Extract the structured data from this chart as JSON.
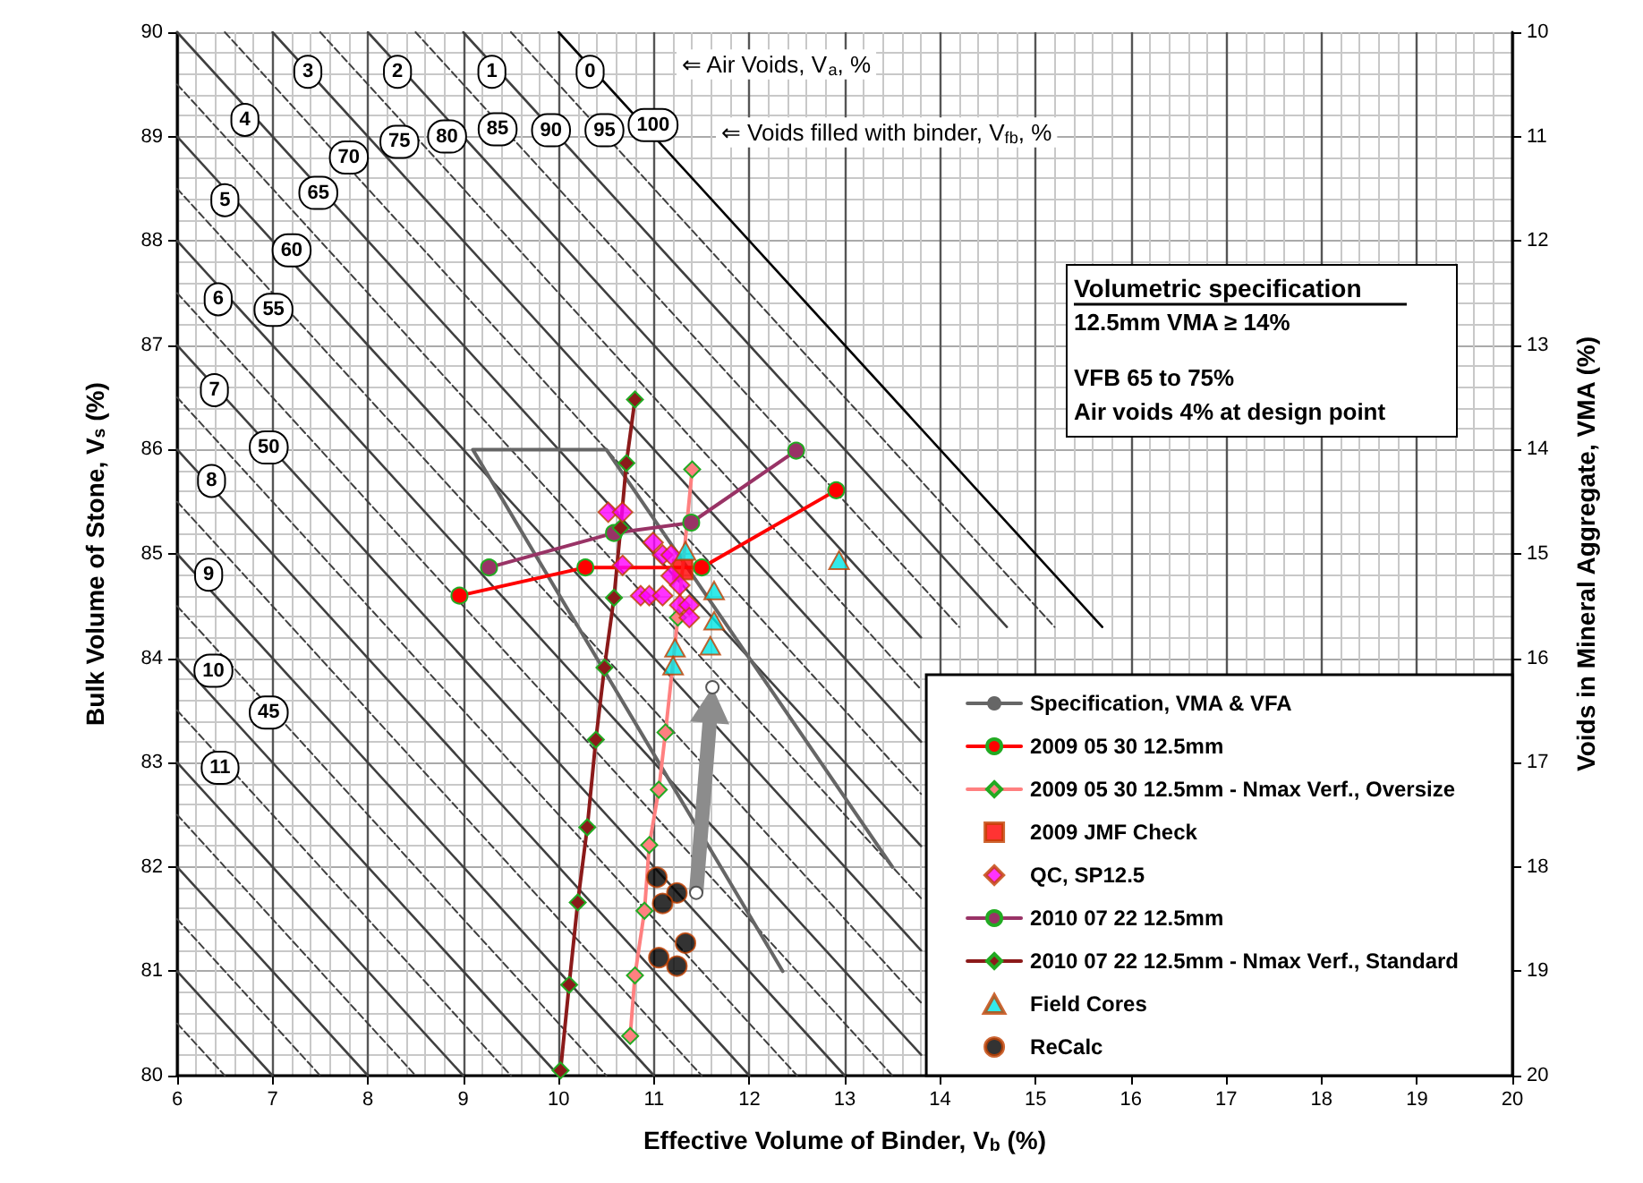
{
  "chart_data": {
    "type": "line",
    "xlabel": "Effective Volume of Binder, V$_{b}$ (%)",
    "ylabel": "Bulk Volume of Stone, V$_{s}$ (%)",
    "y2label": "Voids in Mineral Aggregate, VMA (%)",
    "xlim": [
      6,
      20
    ],
    "xticks": [
      6,
      7,
      8,
      9,
      10,
      11,
      12,
      13,
      14,
      15,
      16,
      17,
      18,
      19,
      20
    ],
    "ylim": [
      80,
      90
    ],
    "yticks": [
      80,
      81,
      82,
      83,
      84,
      85,
      86,
      87,
      88,
      89,
      90
    ],
    "y2lim": [
      20,
      10
    ],
    "y2ticks": [
      10,
      11,
      12,
      13,
      14,
      15,
      16,
      17,
      18,
      19,
      20
    ],
    "grid": true,
    "legend": "bottom right",
    "annotations": [
      "⇐ Air Voids, V$_{a}$, %",
      "⇐ Voids filled with binder, V$_{fb}$, %",
      "Volumetric specification",
      "12.5mm VMA ≥ 14%",
      "VFB 65 to 75%",
      "Air voids 4% at design point",
      {
        "text": "0",
        "x": 10.33,
        "y": 89.62
      },
      {
        "text": "1",
        "x": 9.3,
        "y": 89.62
      },
      {
        "text": "2",
        "x": 8.31,
        "y": 89.62
      },
      {
        "text": "3",
        "x": 7.37,
        "y": 89.62
      },
      {
        "text": "4",
        "x": 6.71,
        "y": 89.16
      },
      {
        "text": "5",
        "x": 6.5,
        "y": 88.39
      },
      {
        "text": "6",
        "x": 6.43,
        "y": 87.44
      },
      {
        "text": "7",
        "x": 6.39,
        "y": 86.57
      },
      {
        "text": "8",
        "x": 6.36,
        "y": 85.7
      },
      {
        "text": "9",
        "x": 6.33,
        "y": 84.8
      },
      {
        "text": "10",
        "x": 6.38,
        "y": 83.88
      },
      {
        "text": "11",
        "x": 6.45,
        "y": 82.95
      },
      {
        "text": "100",
        "x": 10.99,
        "y": 89.11
      },
      {
        "text": "95",
        "x": 10.48,
        "y": 89.06
      },
      {
        "text": "90",
        "x": 9.92,
        "y": 89.06
      },
      {
        "text": "85",
        "x": 9.36,
        "y": 89.07
      },
      {
        "text": "80",
        "x": 8.83,
        "y": 89.0
      },
      {
        "text": "75",
        "x": 8.33,
        "y": 88.95
      },
      {
        "text": "70",
        "x": 7.8,
        "y": 88.8
      },
      {
        "text": "65",
        "x": 7.48,
        "y": 88.46
      },
      {
        "text": "60",
        "x": 7.2,
        "y": 87.91
      },
      {
        "text": "55",
        "x": 7.01,
        "y": 87.34
      },
      {
        "text": "50",
        "x": 6.96,
        "y": 86.02
      },
      {
        "text": "45",
        "x": 6.96,
        "y": 83.48
      }
    ],
    "series": [
      {
        "type": "line",
        "x": [
          10,
          15.7
        ],
        "values": [
          90,
          84.3
        ],
        "color": "#000000",
        "line_style": "solid",
        "marker": "none"
      },
      {
        "type": "line",
        "x": [
          9.5,
          15.2
        ],
        "values": [
          90,
          84.3
        ],
        "color": "#404040",
        "line_style": "dashed",
        "marker": "none"
      },
      {
        "type": "line",
        "x": [
          9,
          14.7
        ],
        "values": [
          90,
          84.3
        ],
        "color": "#404040",
        "line_style": "solid",
        "marker": "none"
      },
      {
        "type": "line",
        "x": [
          8.5,
          14.2
        ],
        "values": [
          90,
          84.3
        ],
        "color": "#404040",
        "line_style": "dashed",
        "marker": "none"
      },
      {
        "type": "line",
        "x": [
          8,
          13.8
        ],
        "values": [
          90,
          84.2
        ],
        "color": "#404040",
        "line_style": "solid",
        "marker": "none"
      },
      {
        "type": "line",
        "x": [
          7.5,
          13.8
        ],
        "values": [
          90,
          83.7
        ],
        "color": "#404040",
        "line_style": "dashed",
        "marker": "none"
      },
      {
        "type": "line",
        "x": [
          7,
          13.8
        ],
        "values": [
          90,
          83.2
        ],
        "color": "#404040",
        "line_style": "solid",
        "marker": "none"
      },
      {
        "type": "line",
        "x": [
          6.5,
          13.8
        ],
        "values": [
          90,
          82.7
        ],
        "color": "#404040",
        "line_style": "dashed",
        "marker": "none"
      },
      {
        "type": "line",
        "x": [
          6,
          13.8
        ],
        "values": [
          90,
          82.2
        ],
        "color": "#404040",
        "line_style": "solid",
        "marker": "none"
      },
      {
        "type": "line",
        "x": [
          6,
          13.8
        ],
        "values": [
          89.5,
          81.7
        ],
        "color": "#404040",
        "line_style": "dashed",
        "marker": "none"
      },
      {
        "type": "line",
        "x": [
          6,
          13.8
        ],
        "values": [
          89,
          81.2
        ],
        "color": "#404040",
        "line_style": "solid",
        "marker": "none"
      },
      {
        "type": "line",
        "x": [
          6,
          13.8
        ],
        "values": [
          88.5,
          80.7
        ],
        "color": "#404040",
        "line_style": "dashed",
        "marker": "none"
      },
      {
        "type": "line",
        "x": [
          6,
          13.8
        ],
        "values": [
          88,
          80.2
        ],
        "color": "#404040",
        "line_style": "solid",
        "marker": "none"
      },
      {
        "type": "line",
        "x": [
          6,
          13.5
        ],
        "values": [
          87.5,
          80
        ],
        "color": "#404040",
        "line_style": "dashed",
        "marker": "none"
      },
      {
        "type": "line",
        "x": [
          6,
          13
        ],
        "values": [
          87,
          80
        ],
        "color": "#404040",
        "line_style": "solid",
        "marker": "none"
      },
      {
        "type": "line",
        "x": [
          6,
          12.5
        ],
        "values": [
          86.5,
          80
        ],
        "color": "#404040",
        "line_style": "dashed",
        "marker": "none"
      },
      {
        "type": "line",
        "x": [
          6,
          12
        ],
        "values": [
          86,
          80
        ],
        "color": "#404040",
        "line_style": "solid",
        "marker": "none"
      },
      {
        "type": "line",
        "x": [
          6,
          11.5
        ],
        "values": [
          85.5,
          80
        ],
        "color": "#404040",
        "line_style": "dashed",
        "marker": "none"
      },
      {
        "type": "line",
        "x": [
          6,
          11
        ],
        "values": [
          85,
          80
        ],
        "color": "#404040",
        "line_style": "solid",
        "marker": "none"
      },
      {
        "type": "line",
        "x": [
          6,
          10.5
        ],
        "values": [
          84.5,
          80
        ],
        "color": "#404040",
        "line_style": "dashed",
        "marker": "none"
      },
      {
        "type": "line",
        "x": [
          6,
          10
        ],
        "values": [
          84,
          80
        ],
        "color": "#404040",
        "line_style": "solid",
        "marker": "none"
      },
      {
        "type": "line",
        "x": [
          6,
          9.5
        ],
        "values": [
          83.5,
          80
        ],
        "color": "#404040",
        "line_style": "dashed",
        "marker": "none"
      },
      {
        "type": "line",
        "x": [
          6,
          9
        ],
        "values": [
          83,
          80
        ],
        "color": "#404040",
        "line_style": "solid",
        "marker": "none"
      },
      {
        "type": "line",
        "x": [
          6,
          8.5
        ],
        "values": [
          82.5,
          80
        ],
        "color": "#404040",
        "line_style": "dashed",
        "marker": "none"
      },
      {
        "type": "line",
        "x": [
          6,
          8
        ],
        "values": [
          82,
          80
        ],
        "color": "#404040",
        "line_style": "solid",
        "marker": "none"
      },
      {
        "type": "line",
        "x": [
          6,
          7.5
        ],
        "values": [
          81.5,
          80
        ],
        "color": "#404040",
        "line_style": "dashed",
        "marker": "none"
      },
      {
        "type": "line",
        "x": [
          6,
          7
        ],
        "values": [
          81,
          80
        ],
        "color": "#404040",
        "line_style": "solid",
        "marker": "none"
      },
      {
        "type": "line",
        "x": [
          6,
          6.5
        ],
        "values": [
          80.5,
          80
        ],
        "color": "#404040",
        "line_style": "dashed",
        "marker": "none"
      },
      {
        "type": "line",
        "name": "Specification, VMA & VFA",
        "x": [
          12.35,
          9.1,
          10.5,
          13.5
        ],
        "values": [
          81,
          86,
          86,
          82
        ],
        "color": "#666666",
        "line_style": "solid",
        "marker": "none"
      },
      {
        "type": "line",
        "name": "2009 05 30 12.5mm",
        "x": [
          8.96,
          10.28,
          11.5,
          12.91
        ],
        "values": [
          84.6,
          84.87,
          84.87,
          85.61
        ],
        "color": "#ff0000",
        "line_style": "solid",
        "marker": "circle"
      },
      {
        "type": "line",
        "name": "2009 05 30 12.5mm - Nmax Verf., Oversize",
        "x": [
          11.4,
          11.25,
          11.12,
          11.05,
          10.95,
          10.9,
          10.8,
          10.75
        ],
        "values": [
          85.81,
          84.39,
          83.29,
          82.74,
          82.21,
          81.58,
          80.96,
          80.38
        ],
        "color": "#ff8080",
        "line_style": "solid",
        "marker": "diamond"
      },
      {
        "type": "scatter",
        "name": "2009 JMF Check",
        "x": [
          11.3
        ],
        "values": [
          84.85
        ],
        "color": "#ff0000",
        "marker": "square"
      },
      {
        "type": "scatter",
        "name": "QC, SP12.5",
        "x": [
          10.52,
          10.67,
          10.99,
          11.09,
          11.18,
          10.67,
          11.18,
          11.27,
          10.86,
          10.95,
          11.09,
          11.27,
          11.37,
          11.37
        ],
        "values": [
          85.4,
          85.4,
          85.11,
          84.99,
          84.99,
          84.89,
          84.79,
          84.7,
          84.6,
          84.6,
          84.6,
          84.51,
          84.51,
          84.39
        ],
        "color": "#ff00ff",
        "marker": "diamond"
      },
      {
        "type": "line",
        "name": "2010 07 22 12.5mm",
        "x": [
          9.27,
          10.58,
          11.39,
          12.49
        ],
        "values": [
          84.87,
          85.2,
          85.3,
          85.99
        ],
        "color": "#993366",
        "line_style": "solid",
        "marker": "circle"
      },
      {
        "type": "line",
        "name": "2010 07 22 12.5mm - Nmax Verf., Standard",
        "x": [
          10.8,
          10.71,
          10.65,
          10.58,
          10.48,
          10.39,
          10.3,
          10.2,
          10.11,
          10.02
        ],
        "values": [
          86.48,
          85.87,
          85.25,
          84.58,
          83.91,
          83.22,
          82.38,
          81.66,
          80.87,
          80.05
        ],
        "color": "#8b1a1a",
        "line_style": "solid",
        "marker": "diamond"
      },
      {
        "type": "scatter",
        "name": "Field Cores",
        "x": [
          11.33,
          11.63,
          11.63,
          11.59,
          11.22,
          11.2,
          12.94
        ],
        "values": [
          85.03,
          84.65,
          84.36,
          84.12,
          84.1,
          83.93,
          84.94
        ],
        "color": "#00e5e5",
        "marker": "triangle"
      },
      {
        "type": "scatter",
        "name": "ReCalc",
        "x": [
          11.03,
          11.24,
          11.09,
          11.33,
          11.05,
          11.24
        ],
        "values": [
          81.9,
          81.75,
          81.65,
          81.27,
          81.13,
          81.05
        ],
        "color": "#000000",
        "marker": "circle"
      }
    ]
  }
}
